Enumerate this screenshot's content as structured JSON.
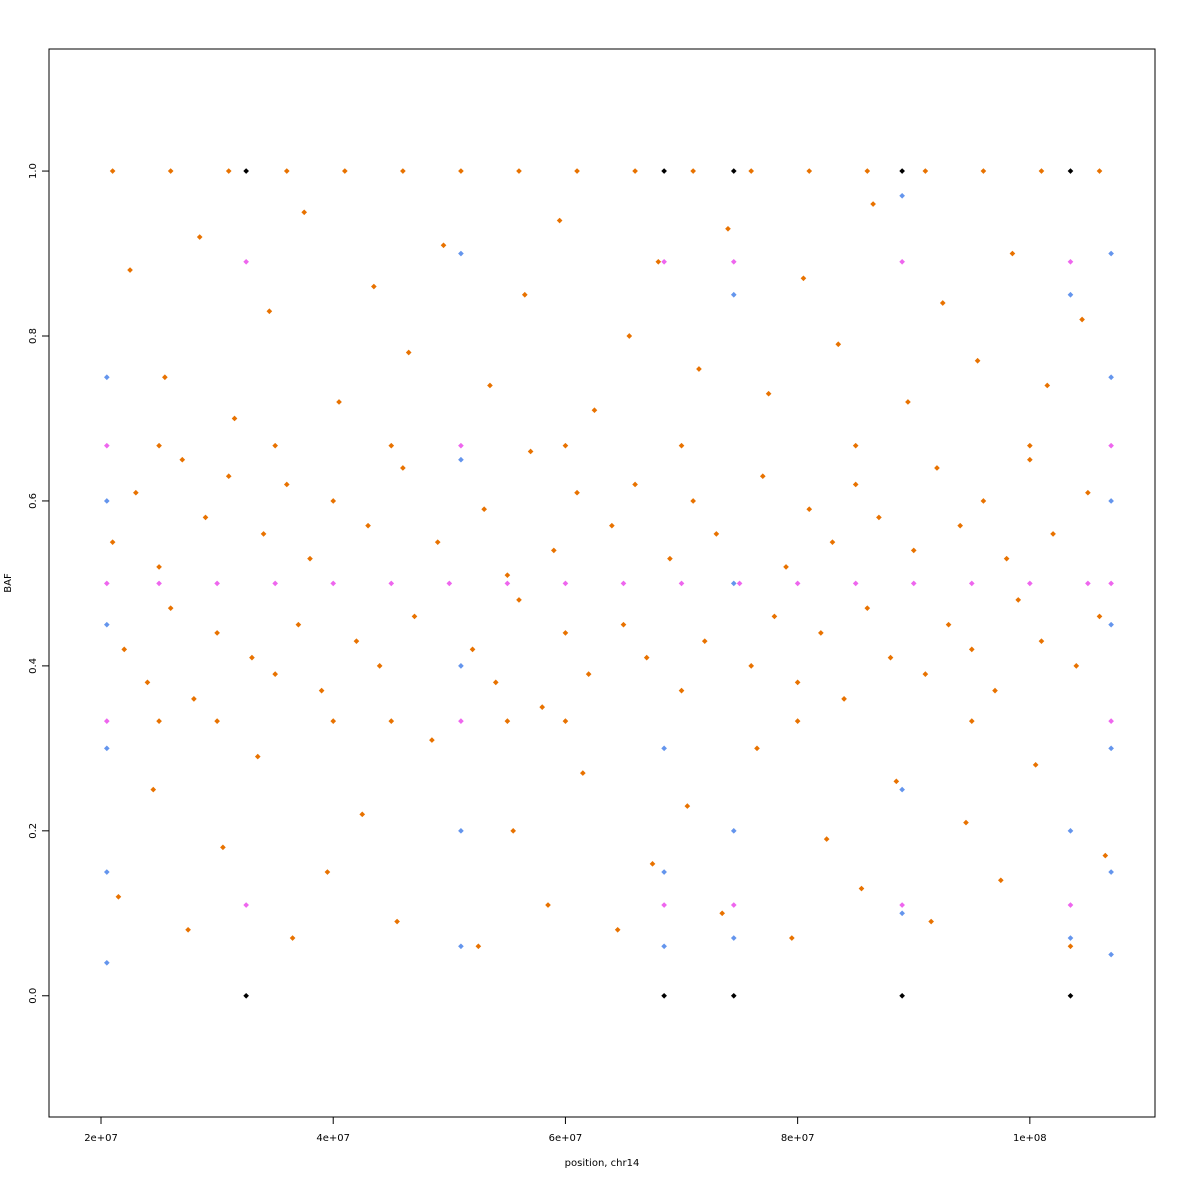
{
  "chart_data": {
    "type": "scatter",
    "x_label": "position, chr14",
    "y_label": "BAF",
    "xlim": [
      15520000,
      110780000
    ],
    "ylim": [
      -0.147,
      1.148
    ],
    "xticks": [
      {
        "value": 20000000,
        "label": "2e+07"
      },
      {
        "value": 40000000,
        "label": "4e+07"
      },
      {
        "value": 60000000,
        "label": "6e+07"
      },
      {
        "value": 80000000,
        "label": "8e+07"
      },
      {
        "value": 100000000,
        "label": "1e+08"
      }
    ],
    "yticks": [
      {
        "value": 0,
        "label": "0.0"
      },
      0.2,
      0.4,
      0.6,
      0.8,
      {
        "value": 1,
        "label": "1.0"
      }
    ],
    "series": [
      {
        "color": "#e87200",
        "x": [
          21000000,
          22000000,
          23000000,
          24000000,
          25000000,
          26000000,
          27000000,
          28000000,
          29000000,
          30000000,
          31000000,
          33000000,
          34000000,
          35000000,
          36000000,
          37000000,
          38000000,
          39000000,
          40000000,
          42000000,
          43000000,
          44000000,
          46000000,
          47000000,
          49000000,
          52000000,
          53000000,
          54000000,
          55000000,
          56000000,
          57000000,
          58000000,
          59000000,
          60000000,
          61000000,
          62000000,
          64000000,
          65000000,
          66000000,
          67000000,
          69000000,
          70000000,
          71000000,
          72000000,
          73000000,
          76000000,
          77000000,
          78000000,
          79000000,
          80000000,
          81000000,
          82000000,
          83000000,
          84000000,
          85000000,
          86000000,
          87000000,
          88000000,
          90000000,
          91000000,
          92000000,
          93000000,
          94000000,
          95000000,
          96000000,
          97000000,
          98000000,
          99000000,
          100000000,
          101000000,
          102000000,
          104000000,
          105000000,
          106000000,
          21500000,
          24500000,
          27500000,
          30500000,
          33500000,
          36500000,
          39500000,
          42500000,
          45500000,
          48500000,
          52500000,
          55500000,
          58500000,
          61500000,
          64500000,
          67500000,
          70500000,
          73500000,
          76500000,
          79500000,
          82500000,
          85500000,
          88500000,
          91500000,
          94500000,
          97500000,
          100500000,
          103500000,
          106500000,
          22500000,
          25500000,
          28500000,
          31500000,
          34500000,
          37500000,
          40500000,
          43500000,
          46500000,
          49500000,
          53500000,
          56500000,
          59500000,
          62500000,
          65500000,
          68000000,
          71500000,
          74000000,
          77500000,
          80500000,
          83500000,
          86500000,
          89500000,
          92500000,
          95500000,
          98500000,
          101500000,
          104500000,
          21000000,
          26000000,
          31000000,
          36000000,
          41000000,
          46000000,
          51000000,
          56000000,
          61000000,
          66000000,
          71000000,
          76000000,
          81000000,
          86000000,
          91000000,
          96000000,
          101000000,
          106000000,
          25000000,
          30000000,
          40000000,
          45000000,
          55000000,
          60000000,
          80000000,
          95000000,
          25000000,
          35000000,
          45000000,
          60000000,
          70000000,
          85000000,
          100000000
        ],
        "values": [
          0.55,
          0.42,
          0.61,
          0.38,
          0.52,
          0.47,
          0.65,
          0.36,
          0.58,
          0.44,
          0.63,
          0.41,
          0.56,
          0.39,
          0.62,
          0.45,
          0.53,
          0.37,
          0.6,
          0.43,
          0.57,
          0.4,
          0.64,
          0.46,
          0.55,
          0.42,
          0.59,
          0.38,
          0.51,
          0.48,
          0.66,
          0.35,
          0.54,
          0.44,
          0.61,
          0.39,
          0.57,
          0.45,
          0.62,
          0.41,
          0.53,
          0.37,
          0.6,
          0.43,
          0.56,
          0.4,
          0.63,
          0.46,
          0.52,
          0.38,
          0.59,
          0.44,
          0.55,
          0.36,
          0.62,
          0.47,
          0.58,
          0.41,
          0.54,
          0.39,
          0.64,
          0.45,
          0.57,
          0.42,
          0.6,
          0.37,
          0.53,
          0.48,
          0.65,
          0.43,
          0.56,
          0.4,
          0.61,
          0.46,
          0.12,
          0.25,
          0.08,
          0.18,
          0.29,
          0.07,
          0.15,
          0.22,
          0.09,
          0.31,
          0.06,
          0.2,
          0.11,
          0.27,
          0.08,
          0.16,
          0.23,
          0.1,
          0.3,
          0.07,
          0.19,
          0.13,
          0.26,
          0.09,
          0.21,
          0.14,
          0.28,
          0.06,
          0.17,
          0.88,
          0.75,
          0.92,
          0.7,
          0.83,
          0.95,
          0.72,
          0.86,
          0.78,
          0.91,
          0.74,
          0.85,
          0.94,
          0.71,
          0.8,
          0.89,
          0.76,
          0.93,
          0.73,
          0.87,
          0.79,
          0.96,
          0.72,
          0.84,
          0.77,
          0.9,
          0.74,
          0.82,
          1,
          1,
          1,
          1,
          1,
          1,
          1,
          1,
          1,
          1,
          1,
          1,
          1,
          1,
          1,
          1,
          1,
          1,
          0.333,
          0.333,
          0.333,
          0.333,
          0.333,
          0.333,
          0.333,
          0.333,
          0.667,
          0.667,
          0.667,
          0.667,
          0.667,
          0.667,
          0.667
        ]
      },
      {
        "color": "#6495ed",
        "x": [
          20500000,
          20500000,
          20500000,
          20500000,
          20500000,
          20500000,
          51000000,
          51000000,
          51000000,
          51000000,
          51000000,
          68500000,
          68500000,
          68500000,
          74500000,
          74500000,
          74500000,
          74500000,
          89000000,
          89000000,
          89000000,
          103500000,
          103500000,
          103500000,
          107000000,
          107000000,
          107000000,
          107000000,
          107000000,
          107000000,
          107000000
        ],
        "values": [
          0.04,
          0.15,
          0.3,
          0.45,
          0.6,
          0.75,
          0.06,
          0.2,
          0.4,
          0.65,
          0.9,
          0.06,
          0.15,
          0.3,
          0.07,
          0.2,
          0.5,
          0.85,
          0.1,
          0.25,
          0.97,
          0.07,
          0.2,
          0.85,
          0.05,
          0.15,
          0.3,
          0.45,
          0.6,
          0.75,
          0.9
        ]
      },
      {
        "color": "#ee66ee",
        "x": [
          20500000,
          25000000,
          30000000,
          35000000,
          40000000,
          45000000,
          50000000,
          55000000,
          60000000,
          65000000,
          70000000,
          75000000,
          80000000,
          85000000,
          90000000,
          95000000,
          100000000,
          105000000,
          107000000,
          20500000,
          51000000,
          107000000,
          20500000,
          51000000,
          107000000,
          32500000,
          68500000,
          74500000,
          89000000,
          103500000,
          32500000,
          68500000,
          74500000,
          89000000,
          103500000
        ],
        "values": [
          0.5,
          0.5,
          0.5,
          0.5,
          0.5,
          0.5,
          0.5,
          0.5,
          0.5,
          0.5,
          0.5,
          0.5,
          0.5,
          0.5,
          0.5,
          0.5,
          0.5,
          0.5,
          0.5,
          0.333,
          0.333,
          0.333,
          0.667,
          0.667,
          0.667,
          0.89,
          0.89,
          0.89,
          0.89,
          0.89,
          0.11,
          0.11,
          0.11,
          0.11,
          0.11
        ]
      },
      {
        "color": "#000000",
        "x": [
          32500000,
          68500000,
          74500000,
          89000000,
          103500000,
          32500000,
          68500000,
          74500000,
          89000000,
          103500000
        ],
        "values": [
          0,
          0,
          0,
          0,
          0,
          1,
          1,
          1,
          1,
          1
        ]
      }
    ]
  }
}
